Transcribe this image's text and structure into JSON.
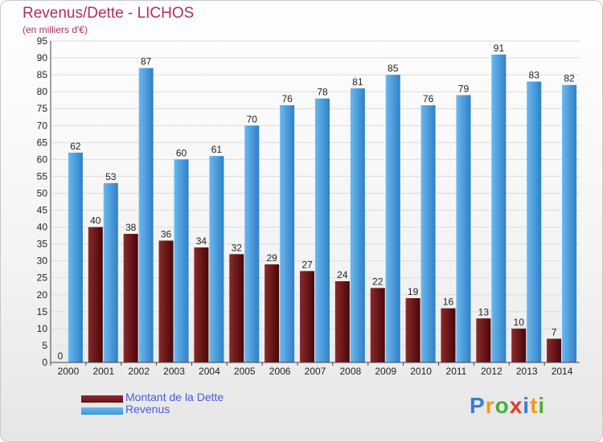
{
  "title": "Revenus/Dette - LICHOS",
  "subtitle": "(en milliers d'€)",
  "logo": {
    "text": "Proxiti",
    "letters": [
      "P",
      "r",
      "o",
      "x",
      "i",
      "t",
      "i"
    ],
    "colors": [
      "#3a7cd6",
      "#f29a1a",
      "#4cae3d",
      "#e5392b",
      "#3a7cd6",
      "#f29a1a",
      "#4cae3d"
    ]
  },
  "colors": {
    "dette": "#6b1418",
    "revenus": "#3c96dc",
    "axis_text": "#222222",
    "grid": "#dcdcdc"
  },
  "chart_data": {
    "type": "bar",
    "categories": [
      "2000",
      "2001",
      "2002",
      "2003",
      "2004",
      "2005",
      "2006",
      "2007",
      "2008",
      "2009",
      "2010",
      "2011",
      "2012",
      "2013",
      "2014"
    ],
    "series": [
      {
        "name": "Montant de la Dette",
        "values": [
          0,
          40,
          38,
          36,
          34,
          32,
          29,
          27,
          24,
          22,
          19,
          16,
          13,
          10,
          7
        ]
      },
      {
        "name": "Revenus",
        "values": [
          62,
          53,
          87,
          60,
          61,
          70,
          76,
          78,
          81,
          85,
          76,
          79,
          91,
          83,
          82
        ]
      }
    ],
    "yticks": [
      0,
      5,
      10,
      15,
      20,
      25,
      30,
      35,
      40,
      45,
      50,
      55,
      60,
      65,
      70,
      75,
      80,
      85,
      90,
      95
    ],
    "ylim": [
      0,
      95
    ],
    "grid": true,
    "legend_position": "bottom-left"
  }
}
